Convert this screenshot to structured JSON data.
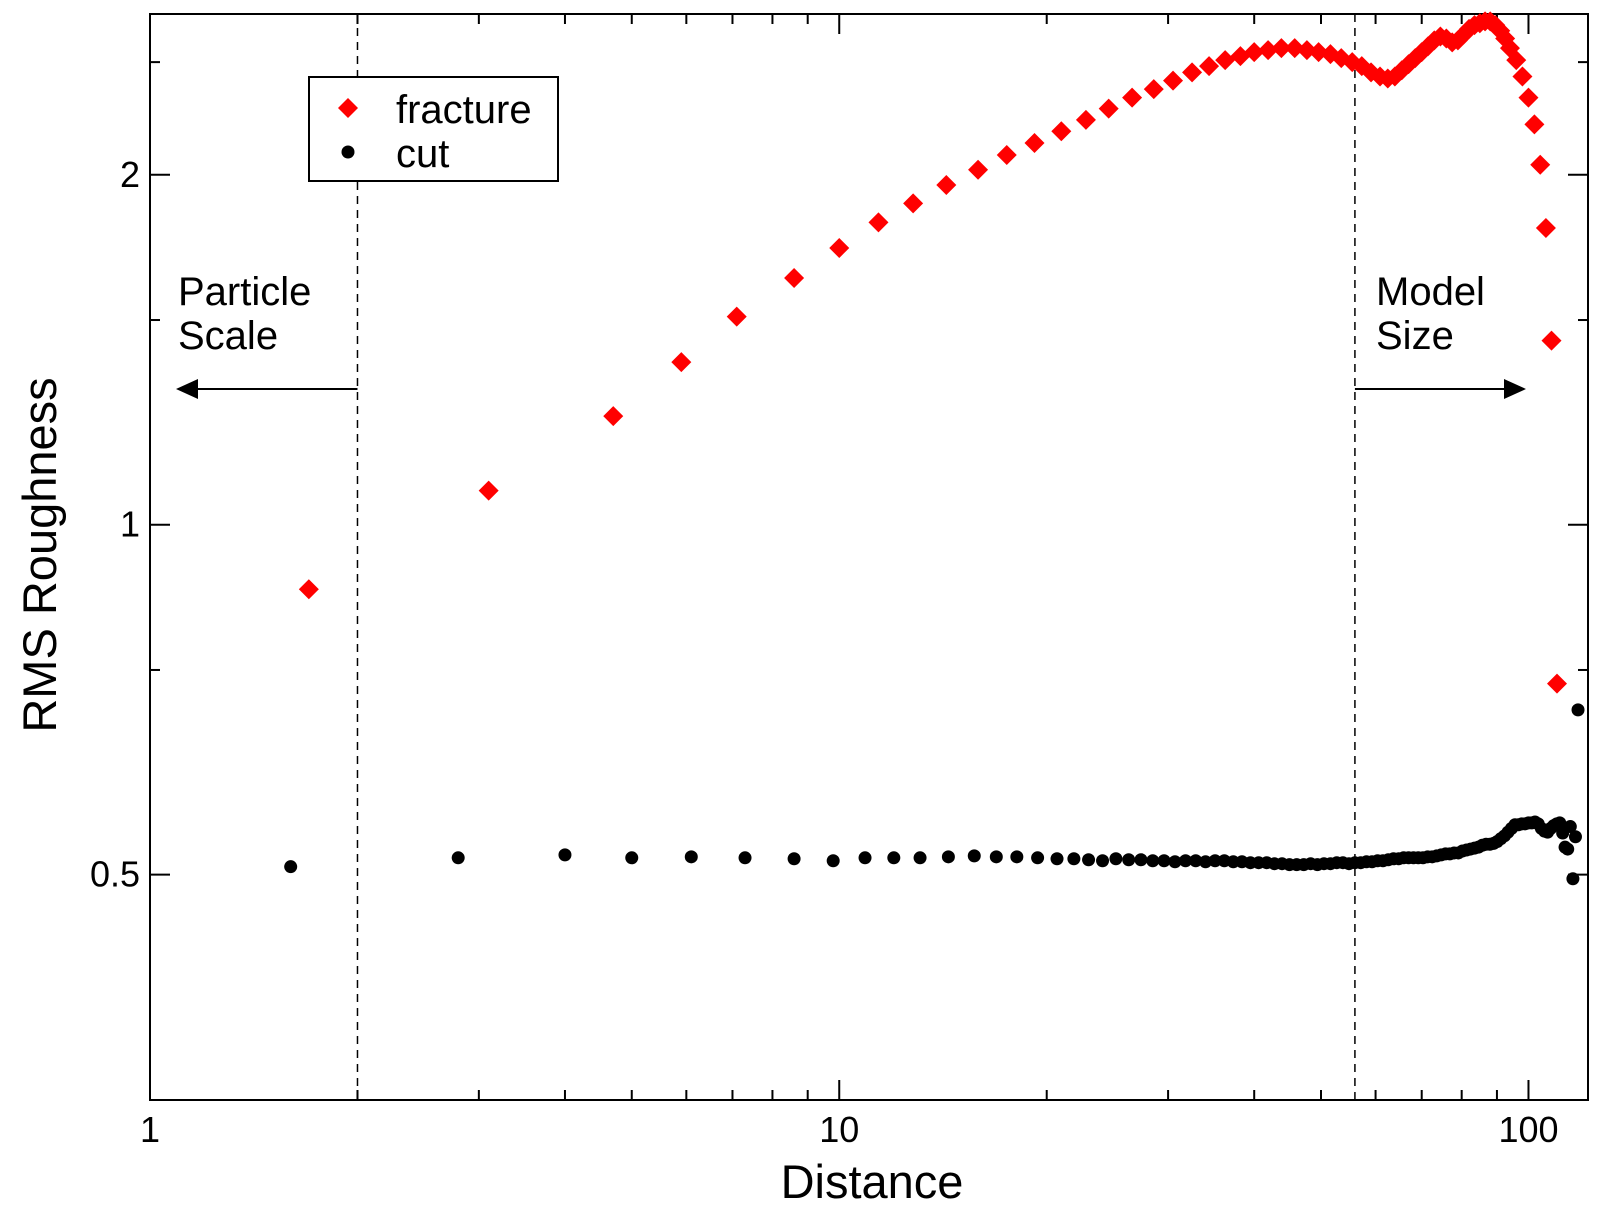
{
  "chart_data": {
    "type": "scatter",
    "title": "",
    "xlabel": "Distance",
    "ylabel": "RMS Roughness",
    "x_scale": "log",
    "y_scale": "log",
    "xlim": [
      1,
      122
    ],
    "ylim": [
      0.32,
      2.75
    ],
    "grid": false,
    "legend_position": "top-left",
    "x_tick_labels": [
      {
        "value": 1,
        "label": "1"
      },
      {
        "value": 10,
        "label": "10"
      },
      {
        "value": 100,
        "label": "100"
      }
    ],
    "y_tick_labels": [
      {
        "value": 0.5,
        "label": "0.5"
      },
      {
        "value": 1,
        "label": "1"
      },
      {
        "value": 2,
        "label": "2"
      }
    ],
    "reference_lines": [
      {
        "x": 2.0,
        "style": "dashed"
      },
      {
        "x": 56,
        "style": "dashed"
      }
    ],
    "annotations": [
      {
        "lines": [
          "Particle",
          "Scale"
        ],
        "arrow": "left"
      },
      {
        "lines": [
          "Model",
          "Size"
        ],
        "arrow": "right"
      }
    ],
    "series": [
      {
        "name": "fracture",
        "marker": "diamond",
        "color": "#ff0000",
        "points": [
          [
            1.7,
            0.88
          ],
          [
            3.1,
            1.07
          ],
          [
            4.7,
            1.24
          ],
          [
            5.9,
            1.38
          ],
          [
            7.1,
            1.51
          ],
          [
            8.6,
            1.63
          ],
          [
            10.0,
            1.73
          ],
          [
            11.4,
            1.82
          ],
          [
            12.8,
            1.89
          ],
          [
            14.3,
            1.96
          ],
          [
            15.9,
            2.02
          ],
          [
            17.5,
            2.08
          ],
          [
            19.2,
            2.13
          ],
          [
            21.0,
            2.18
          ],
          [
            22.8,
            2.23
          ],
          [
            24.6,
            2.28
          ],
          [
            26.6,
            2.33
          ],
          [
            28.6,
            2.37
          ],
          [
            30.5,
            2.41
          ],
          [
            32.5,
            2.45
          ],
          [
            34.4,
            2.48
          ],
          [
            36.3,
            2.51
          ],
          [
            38.2,
            2.53
          ],
          [
            40.0,
            2.55
          ],
          [
            41.9,
            2.56
          ],
          [
            43.8,
            2.57
          ],
          [
            45.8,
            2.57
          ],
          [
            47.7,
            2.56
          ],
          [
            49.6,
            2.55
          ],
          [
            51.6,
            2.54
          ],
          [
            53.5,
            2.52
          ],
          [
            55.5,
            2.5
          ],
          [
            57.3,
            2.48
          ],
          [
            59.1,
            2.45
          ],
          [
            60.9,
            2.43
          ],
          [
            62.5,
            2.42
          ],
          [
            64.0,
            2.43
          ],
          [
            65.5,
            2.46
          ],
          [
            67.0,
            2.49
          ],
          [
            68.5,
            2.52
          ],
          [
            70.0,
            2.55
          ],
          [
            71.5,
            2.58
          ],
          [
            73.0,
            2.61
          ],
          [
            74.5,
            2.63
          ],
          [
            76.0,
            2.62
          ],
          [
            77.5,
            2.6
          ],
          [
            79.0,
            2.61
          ],
          [
            80.5,
            2.64
          ],
          [
            82.0,
            2.67
          ],
          [
            83.5,
            2.69
          ],
          [
            85.0,
            2.7
          ],
          [
            86.5,
            2.71
          ],
          [
            88.0,
            2.71
          ],
          [
            89.5,
            2.69
          ],
          [
            91.0,
            2.66
          ],
          [
            92.5,
            2.62
          ],
          [
            94.0,
            2.57
          ],
          [
            96.0,
            2.51
          ],
          [
            98.0,
            2.43
          ],
          [
            100.0,
            2.33
          ],
          [
            102.0,
            2.21
          ],
          [
            104.0,
            2.04
          ],
          [
            106.0,
            1.8
          ],
          [
            108.0,
            1.44
          ],
          [
            110.0,
            0.73
          ]
        ]
      },
      {
        "name": "cut",
        "marker": "circle",
        "color": "#000000",
        "points": [
          [
            1.6,
            0.508
          ],
          [
            2.8,
            0.517
          ],
          [
            4.0,
            0.52
          ],
          [
            5.0,
            0.517
          ],
          [
            6.1,
            0.518
          ],
          [
            7.3,
            0.517
          ],
          [
            8.6,
            0.516
          ],
          [
            9.8,
            0.514
          ],
          [
            10.9,
            0.517
          ],
          [
            12.0,
            0.517
          ],
          [
            13.1,
            0.517
          ],
          [
            14.4,
            0.518
          ],
          [
            15.7,
            0.519
          ],
          [
            16.9,
            0.518
          ],
          [
            18.1,
            0.518
          ],
          [
            19.4,
            0.517
          ],
          [
            20.7,
            0.516
          ],
          [
            21.9,
            0.516
          ],
          [
            23.0,
            0.515
          ],
          [
            24.1,
            0.514
          ],
          [
            25.2,
            0.516
          ],
          [
            26.3,
            0.515
          ],
          [
            27.4,
            0.515
          ],
          [
            28.5,
            0.514
          ],
          [
            29.6,
            0.514
          ],
          [
            30.7,
            0.513
          ],
          [
            31.8,
            0.514
          ],
          [
            32.9,
            0.514
          ],
          [
            34.0,
            0.513
          ],
          [
            35.1,
            0.514
          ],
          [
            36.2,
            0.514
          ],
          [
            37.3,
            0.513
          ],
          [
            38.4,
            0.513
          ],
          [
            39.5,
            0.512
          ],
          [
            40.6,
            0.512
          ],
          [
            41.7,
            0.512
          ],
          [
            42.8,
            0.511
          ],
          [
            43.9,
            0.511
          ],
          [
            45.0,
            0.51
          ],
          [
            46.1,
            0.51
          ],
          [
            47.2,
            0.51
          ],
          [
            48.3,
            0.511
          ],
          [
            49.4,
            0.51
          ],
          [
            50.5,
            0.511
          ],
          [
            51.6,
            0.511
          ],
          [
            52.7,
            0.512
          ],
          [
            53.8,
            0.512
          ],
          [
            54.9,
            0.511
          ],
          [
            56.0,
            0.512
          ],
          [
            57.1,
            0.512
          ],
          [
            58.2,
            0.513
          ],
          [
            59.3,
            0.513
          ],
          [
            60.4,
            0.514
          ],
          [
            61.5,
            0.514
          ],
          [
            62.6,
            0.515
          ],
          [
            63.7,
            0.516
          ],
          [
            64.8,
            0.516
          ],
          [
            65.9,
            0.517
          ],
          [
            67.0,
            0.517
          ],
          [
            68.1,
            0.517
          ],
          [
            69.2,
            0.517
          ],
          [
            70.3,
            0.517
          ],
          [
            71.4,
            0.518
          ],
          [
            72.5,
            0.518
          ],
          [
            73.6,
            0.519
          ],
          [
            74.7,
            0.52
          ],
          [
            75.8,
            0.521
          ],
          [
            76.9,
            0.521
          ],
          [
            78.0,
            0.522
          ],
          [
            79.1,
            0.522
          ],
          [
            80.2,
            0.524
          ],
          [
            81.3,
            0.525
          ],
          [
            82.4,
            0.526
          ],
          [
            83.5,
            0.527
          ],
          [
            84.6,
            0.528
          ],
          [
            85.7,
            0.53
          ],
          [
            86.8,
            0.531
          ],
          [
            87.9,
            0.531
          ],
          [
            89.0,
            0.532
          ],
          [
            90.1,
            0.534
          ],
          [
            91.2,
            0.537
          ],
          [
            92.3,
            0.54
          ],
          [
            93.4,
            0.544
          ],
          [
            94.5,
            0.548
          ],
          [
            95.6,
            0.552
          ],
          [
            96.7,
            0.552
          ],
          [
            97.8,
            0.553
          ],
          [
            98.9,
            0.553
          ],
          [
            100.0,
            0.554
          ],
          [
            101.1,
            0.554
          ],
          [
            102.2,
            0.555
          ],
          [
            103.3,
            0.553
          ],
          [
            104.4,
            0.548
          ],
          [
            105.5,
            0.545
          ],
          [
            106.6,
            0.544
          ],
          [
            107.7,
            0.548
          ],
          [
            108.8,
            0.551
          ],
          [
            109.9,
            0.553
          ],
          [
            111.0,
            0.554
          ],
          [
            112.1,
            0.543
          ],
          [
            113.0,
            0.528
          ],
          [
            114.0,
            0.526
          ],
          [
            115.0,
            0.55
          ],
          [
            116.0,
            0.496
          ],
          [
            117.0,
            0.539
          ],
          [
            118.0,
            0.693
          ]
        ]
      }
    ]
  }
}
